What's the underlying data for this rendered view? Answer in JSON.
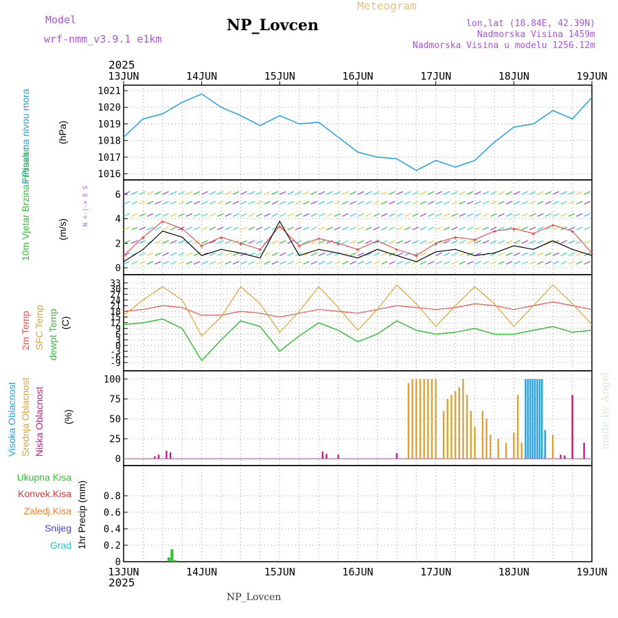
{
  "header": {
    "model_label": "Model",
    "model_name": "wrf-nmm_v3.9.1  e1km",
    "station": "NP_Lovcen",
    "product": "Meteogram",
    "lonlat": "lon,lat (18.84E, 42.39N)",
    "elevation": "Nadmorska Visina 1459m",
    "model_elevation": "Nadmorska Visina u modelu 1256.12m",
    "year_top": "2025",
    "year_bottom": "2025",
    "footer": "NP_Lovcen",
    "credit": "made by Angel"
  },
  "colors": {
    "pressure": "#1ea0e6",
    "wind_speed": "#000000",
    "wind_max": "#e83030",
    "temp2m": "#e8504a",
    "sfc_temp": "#e0a030",
    "dewpt": "#30c030",
    "high_cloud": "#1ea0e6",
    "mid_cloud": "#e0a030",
    "low_cloud": "#c01890",
    "precip_total": "#30c030",
    "precip_conv": "#e83030",
    "precip_frz": "#f08030",
    "precip_snow": "#4040e0",
    "precip_grad": "#30c0c0",
    "label_purple": "#b050e0"
  },
  "chart_data": [
    {
      "type": "line",
      "panel": "pressure",
      "ylabel": "Pritisak na nivou mora",
      "unit": "(hPa)",
      "ylim": [
        1016,
        1021
      ],
      "yticks": [
        1016,
        1017,
        1018,
        1019,
        1020,
        1021
      ],
      "x_days": [
        "13JUN",
        "14JUN",
        "15JUN",
        "16JUN",
        "17JUN",
        "18JUN",
        "19JUN"
      ],
      "x": [
        0,
        0.25,
        0.5,
        0.75,
        1.0,
        1.25,
        1.5,
        1.75,
        2.0,
        2.25,
        2.5,
        2.75,
        3.0,
        3.25,
        3.5,
        3.75,
        4.0,
        4.25,
        4.5,
        4.75,
        5.0,
        5.25,
        5.5,
        5.75,
        6.0
      ],
      "series": [
        {
          "values": [
            1018.2,
            1019.3,
            1019.6,
            1020.3,
            1020.8,
            1020.0,
            1019.5,
            1018.9,
            1019.5,
            1019.0,
            1019.1,
            1018.2,
            1017.3,
            1017.0,
            1016.9,
            1016.2,
            1016.8,
            1016.4,
            1016.8,
            1017.9,
            1018.8,
            1019.0,
            1019.8,
            1019.3,
            1020.6
          ]
        }
      ]
    },
    {
      "type": "line",
      "panel": "wind",
      "ylabel": "10m Vjetar Brzina i Pravac",
      "unit": "(m/s)",
      "compass": "N <-|-> E S",
      "ylim": [
        0,
        6.5
      ],
      "yticks": [
        0,
        2,
        4,
        6
      ],
      "x": [
        0,
        0.25,
        0.5,
        0.75,
        1.0,
        1.25,
        1.5,
        1.75,
        2.0,
        2.25,
        2.5,
        2.75,
        3.0,
        3.25,
        3.5,
        3.75,
        4.0,
        4.25,
        4.5,
        4.75,
        5.0,
        5.25,
        5.5,
        5.75,
        6.0
      ],
      "series": [
        {
          "name": "speed",
          "values": [
            0.5,
            1.5,
            3.0,
            2.5,
            1.0,
            1.5,
            1.2,
            0.8,
            3.8,
            1.0,
            1.5,
            1.2,
            0.8,
            1.5,
            1.0,
            0.5,
            1.3,
            1.5,
            1.0,
            1.2,
            1.8,
            1.5,
            2.2,
            1.5,
            1.0
          ]
        },
        {
          "name": "max",
          "values": [
            1.0,
            2.5,
            3.8,
            3.2,
            1.8,
            2.5,
            2.0,
            1.5,
            3.4,
            1.8,
            2.4,
            2.0,
            1.5,
            2.2,
            1.5,
            1.0,
            2.0,
            2.5,
            2.3,
            3.0,
            3.2,
            2.8,
            3.5,
            3.0,
            1.2
          ]
        }
      ]
    },
    {
      "type": "line",
      "panel": "temperature",
      "ylabel_series": [
        "2m Temp",
        "SFC Temp",
        "dewpt Temp"
      ],
      "unit": "(C)",
      "ylim": [
        -9,
        33
      ],
      "yticks": [
        -9,
        -6,
        -3,
        0,
        3,
        6,
        9,
        12,
        15,
        18,
        21,
        24,
        27,
        30,
        33
      ],
      "x": [
        0,
        0.25,
        0.5,
        0.75,
        1.0,
        1.25,
        1.5,
        1.75,
        2.0,
        2.25,
        2.5,
        2.75,
        3.0,
        3.25,
        3.5,
        3.75,
        4.0,
        4.25,
        4.5,
        4.75,
        5.0,
        5.25,
        5.5,
        5.75,
        6.0
      ],
      "series": [
        {
          "name": "2m Temp",
          "values": [
            18,
            19,
            21,
            20,
            16,
            16,
            18,
            17,
            15,
            17,
            19,
            18,
            17,
            19,
            21,
            20,
            19,
            20,
            22,
            21,
            19,
            21,
            23,
            21,
            19
          ]
        },
        {
          "name": "SFC Temp",
          "values": [
            16,
            24,
            31,
            24,
            5,
            15,
            31,
            22,
            7,
            18,
            31,
            20,
            8,
            19,
            32,
            22,
            10,
            21,
            31,
            22,
            10,
            21,
            32,
            22,
            11
          ]
        },
        {
          "name": "dewpt Temp",
          "values": [
            11,
            12,
            14,
            9,
            -8,
            3,
            13,
            10,
            -3,
            5,
            12,
            8,
            2,
            6,
            13,
            8,
            6,
            7,
            9,
            6,
            6,
            8,
            10,
            7,
            8
          ]
        }
      ]
    },
    {
      "type": "bar",
      "panel": "cloud",
      "ylabel_series": [
        "Visoka Oblacnost",
        "Srednja Oblacnost",
        "Niska Oblacnost"
      ],
      "unit": "(%)",
      "ylim": [
        0,
        100
      ],
      "yticks": [
        0,
        25,
        50,
        75,
        100
      ],
      "series": [
        {
          "name": "Srednja Oblacnost",
          "x": [
            3.65,
            3.7,
            3.75,
            3.8,
            3.85,
            3.9,
            3.95,
            4.0,
            4.1,
            4.15,
            4.2,
            4.25,
            4.3,
            4.35,
            4.4,
            4.45,
            4.5,
            4.6,
            4.65,
            4.7,
            4.8,
            4.9,
            5.0,
            5.05,
            5.1,
            5.4,
            5.5,
            5.75
          ],
          "values": [
            95,
            100,
            100,
            100,
            100,
            100,
            100,
            100,
            60,
            75,
            80,
            85,
            90,
            100,
            80,
            60,
            40,
            60,
            50,
            30,
            25,
            20,
            33,
            80,
            20,
            8,
            30,
            80
          ]
        },
        {
          "name": "Visoka Oblacnost",
          "x": [
            5.15,
            5.18,
            5.21,
            5.24,
            5.27,
            5.3,
            5.33,
            5.36,
            5.4
          ],
          "values": [
            100,
            100,
            100,
            100,
            100,
            100,
            100,
            100,
            36
          ]
        },
        {
          "name": "Niska Oblacnost",
          "x": [
            0.4,
            0.45,
            0.55,
            0.6,
            2.55,
            2.6,
            2.75,
            3.5,
            5.6,
            5.65,
            5.75,
            5.9
          ],
          "values": [
            3,
            5,
            10,
            8,
            9,
            6,
            5,
            7,
            5,
            4,
            80,
            20
          ]
        }
      ]
    },
    {
      "type": "bar",
      "panel": "precip",
      "ylabel": "1hr Precip (mm)",
      "legend": [
        "Ukupna Kisa",
        "Konvek.Kisa",
        "Zaledj.Kisa",
        "Snijeg",
        "Grad"
      ],
      "ylim": [
        0,
        1.0
      ],
      "yticks": [
        0,
        0.2,
        0.4,
        0.6,
        0.8
      ],
      "series": [
        {
          "name": "Ukupna Kisa",
          "x": [
            0.58,
            0.62,
            0.66
          ],
          "values": [
            0.05,
            0.15,
            0.02
          ]
        }
      ]
    }
  ]
}
